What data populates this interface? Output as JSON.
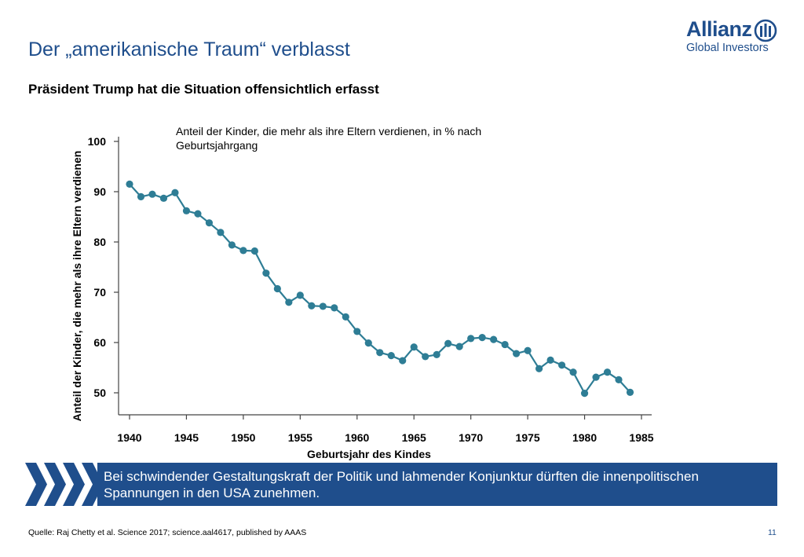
{
  "slide": {
    "title": "Der „amerikanische Traum“ verblasst",
    "subtitle": "Präsident Trump hat die Situation offensichtlich erfasst"
  },
  "logo": {
    "word": "Allianz",
    "sub": "Global Investors"
  },
  "chart_data": {
    "type": "line",
    "title": "Anteil der Kinder, die mehr als ihre Eltern verdienen, in % nach Geburtsjahrgang",
    "xlabel": "Geburtsjahr des Kindes",
    "ylabel": "Anteil der Kinder, die mehr als ihre Eltern verdienen",
    "xlim": [
      1939,
      1986
    ],
    "ylim": [
      46,
      101
    ],
    "x_ticks": [
      1940,
      1945,
      1950,
      1955,
      1960,
      1965,
      1970,
      1975,
      1980,
      1985
    ],
    "y_ticks": [
      50,
      60,
      70,
      80,
      90,
      100
    ],
    "grid": false,
    "series_color": "#2e7d95",
    "series": [
      {
        "x": [
          1940,
          1941,
          1942,
          1943,
          1944,
          1945,
          1946,
          1947,
          1948,
          1949,
          1950,
          1951,
          1952,
          1953,
          1954,
          1955,
          1956,
          1957,
          1958,
          1959,
          1960,
          1961,
          1962,
          1963,
          1964,
          1965,
          1966,
          1967,
          1968,
          1969,
          1970,
          1971,
          1972,
          1973,
          1974,
          1975,
          1976,
          1977,
          1978,
          1979,
          1980,
          1981,
          1982,
          1983,
          1984
        ],
        "values": [
          91.5,
          89.0,
          89.5,
          88.7,
          89.8,
          86.2,
          85.6,
          83.8,
          81.9,
          79.4,
          78.3,
          78.2,
          73.8,
          70.7,
          68.0,
          69.4,
          67.3,
          67.2,
          66.9,
          65.1,
          62.2,
          59.9,
          58.0,
          57.4,
          56.4,
          59.1,
          57.2,
          57.6,
          59.8,
          59.2,
          60.8,
          61.0,
          60.6,
          59.6,
          57.8,
          58.4,
          54.8,
          56.5,
          55.5,
          54.1,
          49.9,
          53.1,
          54.1,
          52.6,
          50.1
        ]
      }
    ]
  },
  "banner": {
    "text": "Bei schwindender Gestaltungskraft der Politik und lahmender Konjunktur dürften die innenpolitischen Spannungen in den USA zunehmen."
  },
  "footer": {
    "source": "Quelle: Raj Chetty et  al. Science 2017; science.aal4617, published by AAAS",
    "page": "11"
  }
}
